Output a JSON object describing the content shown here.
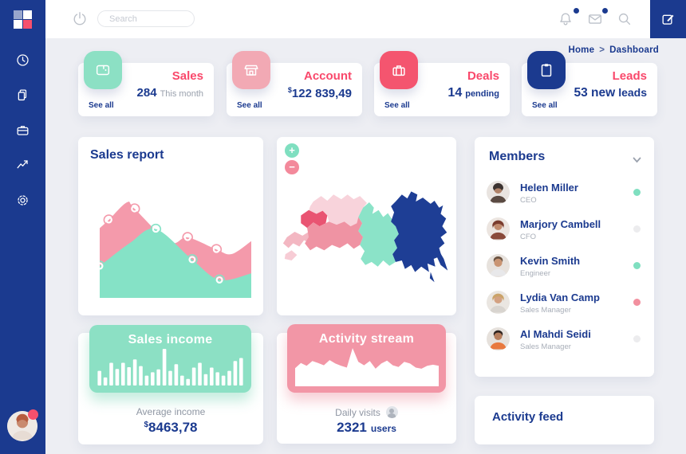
{
  "colors": {
    "navy": "#1b3a8f",
    "accent_red": "#f9486b",
    "mint": "#8ce0c4",
    "pink": "#f296a6",
    "page_bg": "#edeef3",
    "card_bg": "#ffffff",
    "muted_text": "#9aa1ad"
  },
  "sidebar": {
    "nav": [
      {
        "icon": "clock-icon"
      },
      {
        "icon": "documents-icon"
      },
      {
        "icon": "briefcase-icon"
      },
      {
        "icon": "trend-icon"
      },
      {
        "icon": "settings-icon"
      }
    ],
    "avatar_status_color": "#f6506d"
  },
  "header": {
    "search_placeholder": "Search",
    "notification_dot_color": "#1b3a8f",
    "message_dot_color": "#1b3a8f"
  },
  "breadcrumb": {
    "home": "Home",
    "separator": ">",
    "current": "Dashboard"
  },
  "stats": [
    {
      "title": "Sales",
      "value": "284",
      "note": "This month",
      "link": "See all",
      "icon": "wallet-icon",
      "tile_color": "#8ce0c4"
    },
    {
      "title": "Account",
      "currency": "$",
      "value": "122 839,49",
      "link": "See all",
      "icon": "shop-icon",
      "tile_color": "#f2a9b4"
    },
    {
      "title": "Deals",
      "value": "14",
      "note": "pending",
      "link": "See all",
      "icon": "suitcase-icon",
      "tile_color": "#f4556f"
    },
    {
      "title": "Leads",
      "value": "53 new",
      "note": "leads",
      "link": "See all",
      "icon": "clipboard-icon",
      "tile_color": "#1b3a8f"
    }
  ],
  "sales_report": {
    "title": "Sales report"
  },
  "map": {
    "zoom_in": "+",
    "zoom_out": "−",
    "region_colors": [
      "#f8d3db",
      "#e95472",
      "#ef93a3",
      "#f3b7c2",
      "#f7ccd5",
      "#8be3c8",
      "#1e3e95"
    ]
  },
  "members": {
    "title": "Members",
    "list": [
      {
        "name": "Helen Miller",
        "role": "CEO",
        "status_color": "#7fdfc0"
      },
      {
        "name": "Marjory Cambell",
        "role": "CFO",
        "status_color": "#ececee"
      },
      {
        "name": "Kevin Smith",
        "role": "Engineer",
        "status_color": "#7fdfc0"
      },
      {
        "name": "Lydia Van Camp",
        "role": "Sales Manager",
        "status_color": "#f2909f"
      },
      {
        "name": "Al Mahdi Seidi",
        "role": "Sales Manager",
        "status_color": "#ececee"
      }
    ]
  },
  "sales_income": {
    "title": "Sales income",
    "label": "Average income",
    "currency": "$",
    "value": "8463,78"
  },
  "activity_stream": {
    "title": "Activity stream",
    "label": "Daily visits",
    "value": "2321",
    "unit": "users"
  },
  "activity_feed": {
    "title": "Activity feed"
  },
  "chart_data": [
    {
      "id": "sales_report",
      "type": "area",
      "title": "Sales report",
      "axes_visible": false,
      "series": [
        {
          "name": "pink-series",
          "color": "#f49aab",
          "points": [
            {
              "x": 0,
              "y": 72
            },
            {
              "x": 6,
              "y": 81,
              "marker": true
            },
            {
              "x": 18,
              "y": 100
            },
            {
              "x": 23,
              "y": 93,
              "marker": true
            },
            {
              "x": 46,
              "y": 57
            },
            {
              "x": 58,
              "y": 62,
              "marker": true
            },
            {
              "x": 77,
              "y": 49,
              "marker": true
            },
            {
              "x": 87,
              "y": 44
            },
            {
              "x": 100,
              "y": 58
            }
          ]
        },
        {
          "name": "mint-series",
          "color": "#85e2c6",
          "points": [
            {
              "x": 0,
              "y": 31,
              "marker": true
            },
            {
              "x": 20,
              "y": 56
            },
            {
              "x": 37,
              "y": 71,
              "marker": true
            },
            {
              "x": 61,
              "y": 38,
              "marker": true
            },
            {
              "x": 79,
              "y": 16,
              "marker": true
            },
            {
              "x": 100,
              "y": 23
            }
          ]
        }
      ]
    },
    {
      "id": "sales_income",
      "type": "bar",
      "bar_color": "#ffffff",
      "values": [
        40,
        22,
        62,
        45,
        62,
        50,
        71,
        53,
        27,
        36,
        44,
        100,
        40,
        58,
        27,
        18,
        49,
        62,
        31,
        49,
        36,
        27,
        40,
        67,
        75
      ]
    },
    {
      "id": "activity_stream",
      "type": "area",
      "fill_color": "#ffffff",
      "values": [
        30,
        48,
        38,
        55,
        48,
        40,
        58,
        46,
        38,
        32,
        100,
        52,
        40,
        55,
        28,
        46,
        56,
        40,
        34,
        52,
        46,
        32,
        28,
        38,
        42,
        38
      ]
    }
  ]
}
